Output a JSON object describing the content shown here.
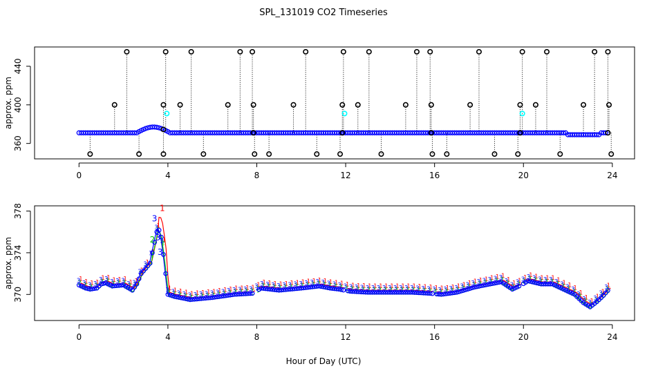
{
  "title": "SPL_131019  CO2 Timeseries",
  "xlabel": "Hour of Day (UTC)",
  "colors": {
    "series_1": "#ff0000",
    "series_2": "#00cc00",
    "series_3": "#0000ff",
    "points": "#0000ff",
    "flagged": "#00ffff",
    "outliers": "#000000"
  },
  "chart_data": [
    {
      "type": "scatter",
      "panel": "top",
      "ylabel": "approx. ppm",
      "xlim": [
        -2,
        25
      ],
      "ylim": [
        344,
        460
      ],
      "x_ticks": [
        "0",
        "4",
        "8",
        "12",
        "16",
        "20",
        "24"
      ],
      "y_ticks": [
        "360",
        "400",
        "440"
      ],
      "baseline_ppm": 371,
      "spike_high_hours": [
        2.15,
        3.9,
        5.05,
        7.25,
        7.8,
        10.2,
        11.9,
        13.05,
        15.2,
        15.8,
        18.0,
        19.95,
        21.05,
        23.2,
        23.8
      ],
      "spike_mid_hours": [
        1.6,
        3.8,
        4.55,
        6.7,
        7.85,
        9.65,
        11.85,
        12.55,
        14.7,
        15.85,
        17.6,
        19.85,
        20.55,
        22.7,
        23.85
      ],
      "spike_low_hours": [
        0.5,
        2.7,
        3.8,
        5.6,
        7.9,
        8.55,
        10.7,
        11.75,
        13.6,
        15.9,
        16.55,
        18.7,
        19.75,
        21.65,
        23.95
      ],
      "spike_high_ppm": 455,
      "spike_mid_ppm": 400,
      "spike_low_ppm": 349,
      "flagged_points": [
        {
          "hour": 3.95,
          "ppm": 391
        },
        {
          "hour": 11.95,
          "ppm": 391
        },
        {
          "hour": 19.95,
          "ppm": 391
        }
      ]
    },
    {
      "type": "line",
      "panel": "bottom",
      "ylabel": "approx. ppm",
      "xlim": [
        -2,
        25
      ],
      "ylim": [
        367.5,
        378.5
      ],
      "x_ticks": [
        "0",
        "4",
        "8",
        "12",
        "16",
        "20",
        "24"
      ],
      "y_ticks": [
        "370",
        "374",
        "378"
      ],
      "markers": [
        "1",
        "2",
        "3"
      ],
      "curve_points": [
        [
          0.0,
          370.9
        ],
        [
          0.3,
          370.6
        ],
        [
          0.5,
          370.5
        ],
        [
          0.8,
          370.6
        ],
        [
          1.0,
          371.0
        ],
        [
          1.2,
          371.1
        ],
        [
          1.5,
          370.8
        ],
        [
          2.0,
          370.9
        ],
        [
          2.4,
          370.4
        ],
        [
          2.6,
          371.0
        ],
        [
          2.8,
          372.0
        ],
        [
          3.0,
          372.5
        ],
        [
          3.2,
          373.0
        ],
        [
          3.4,
          375.0
        ],
        [
          3.55,
          376.5
        ],
        [
          3.7,
          375.5
        ],
        [
          3.85,
          373.0
        ],
        [
          4.0,
          370.0
        ],
        [
          4.3,
          369.8
        ],
        [
          5.0,
          369.5
        ],
        [
          6.0,
          369.7
        ],
        [
          7.0,
          370.0
        ],
        [
          7.8,
          370.1
        ],
        [
          8.2,
          370.6
        ],
        [
          9.0,
          370.4
        ],
        [
          10.0,
          370.6
        ],
        [
          10.8,
          370.8
        ],
        [
          11.3,
          370.6
        ],
        [
          11.7,
          370.5
        ],
        [
          12.2,
          370.3
        ],
        [
          13.0,
          370.2
        ],
        [
          14.0,
          370.2
        ],
        [
          15.0,
          370.2
        ],
        [
          15.8,
          370.1
        ],
        [
          16.3,
          370.0
        ],
        [
          17.0,
          370.2
        ],
        [
          17.8,
          370.7
        ],
        [
          18.5,
          371.0
        ],
        [
          19.0,
          371.2
        ],
        [
          19.5,
          370.5
        ],
        [
          19.9,
          370.9
        ],
        [
          20.2,
          371.3
        ],
        [
          20.8,
          371.0
        ],
        [
          21.3,
          371.0
        ],
        [
          21.8,
          370.5
        ],
        [
          22.3,
          370.0
        ],
        [
          22.7,
          369.2
        ],
        [
          23.0,
          368.8
        ],
        [
          23.3,
          369.3
        ],
        [
          23.6,
          369.9
        ],
        [
          23.8,
          370.4
        ]
      ]
    }
  ]
}
